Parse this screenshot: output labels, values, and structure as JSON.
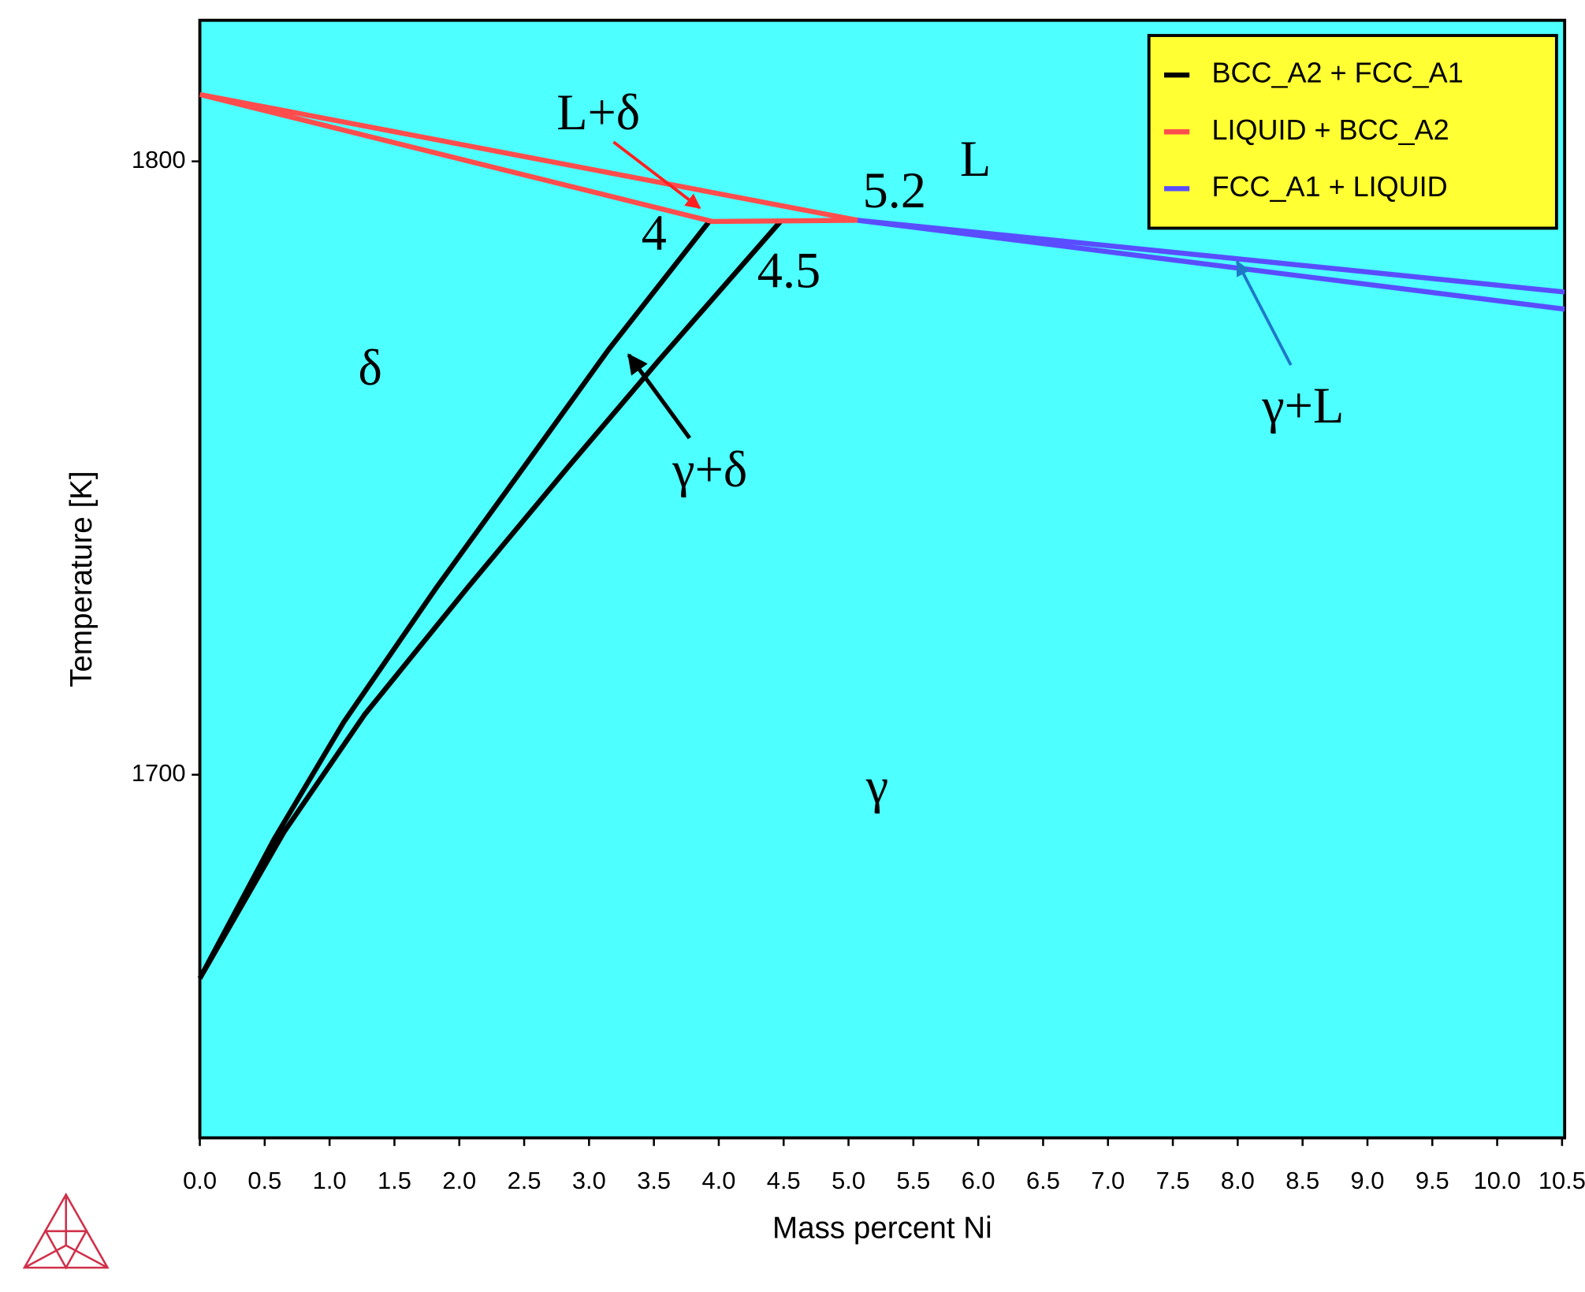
{
  "chart_data": {
    "type": "line",
    "xlabel": "Mass percent Ni",
    "ylabel": "Temperature [K]",
    "xlim": [
      0,
      10.52
    ],
    "ylim": [
      1640.8,
      1823
    ],
    "xticks": [
      {
        "value": 0,
        "label": "0.0"
      },
      0.5,
      {
        "value": 1,
        "label": "1.0"
      },
      1.5,
      {
        "value": 2,
        "label": "2.0"
      },
      2.5,
      {
        "value": 3,
        "label": "3.0"
      },
      3.5,
      {
        "value": 4,
        "label": "4.0"
      },
      4.5,
      {
        "value": 5,
        "label": "5.0"
      },
      5.5,
      {
        "value": 6,
        "label": "6.0"
      },
      6.5,
      {
        "value": 7,
        "label": "7.0"
      },
      7.5,
      {
        "value": 8,
        "label": "8.0"
      },
      8.5,
      {
        "value": 9,
        "label": "9.0"
      },
      9.5,
      {
        "value": 10,
        "label": "10.0"
      },
      10.5
    ],
    "yticks": [
      1700,
      1800
    ],
    "grid": false,
    "legend": "top-right",
    "background": "#4dfffe",
    "series": [
      {
        "name": "BCC_A2 + FCC_A1",
        "color": "#000000",
        "x": [
          0,
          0.57,
          1.11,
          1.82,
          2.53,
          3.15,
          3.93,
          null,
          0,
          0.65,
          1.27,
          2.06,
          2.84,
          3.54,
          4.48
        ],
        "values": [
          1666.8,
          1689.4,
          1708.6,
          1730.4,
          1751.1,
          1769.3,
          1790.3,
          null,
          1666.8,
          1690.7,
          1709.8,
          1730.4,
          1750.2,
          1767.6,
          1790.3
        ]
      },
      {
        "name": "LIQUID + BCC_A2",
        "color": "#ff4d4d",
        "x": [
          0,
          5.07,
          null,
          0,
          3.95,
          4.55,
          5.07
        ],
        "values": [
          1810.9,
          1790.4,
          null,
          1810.9,
          1790.2,
          1790.3,
          1790.4
        ]
      },
      {
        "name": "FCC_A1 + LIQUID",
        "color": "#5a4dff",
        "x": [
          5.07,
          10.52,
          null,
          5.07,
          10.52
        ],
        "values": [
          1790.4,
          1778.7,
          null,
          1790.4,
          1775.9
        ]
      }
    ],
    "annotations": [
      "L+δ",
      "L",
      "5.2",
      "4",
      "4.5",
      "δ",
      "γ+δ",
      "γ+L",
      "γ"
    ]
  }
}
